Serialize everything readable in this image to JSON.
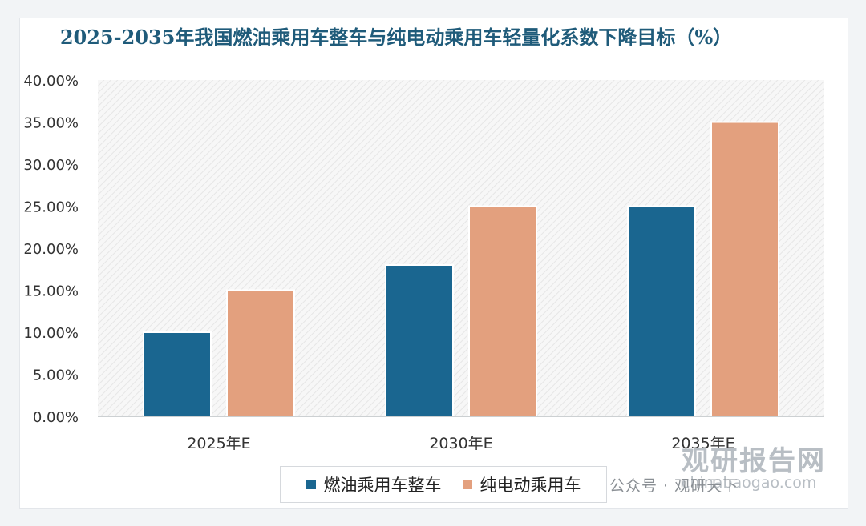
{
  "chart_data": {
    "type": "bar",
    "title": "2025-2035年我国燃油乘用车整车与纯电动乘用车轻量化系数下降目标（%）",
    "categories": [
      "2025年E",
      "2030年E",
      "2035年E"
    ],
    "series": [
      {
        "name": "燃油乘用车整车",
        "values": [
          10,
          18,
          25
        ],
        "color": "#1a6690"
      },
      {
        "name": "纯电动乘用车",
        "values": [
          15,
          25,
          35
        ],
        "color": "#e3a07e"
      }
    ],
    "ylim": [
      0,
      40
    ],
    "yticks": [
      "0.00%",
      "5.00%",
      "10.00%",
      "15.00%",
      "20.00%",
      "25.00%",
      "30.00%",
      "35.00%",
      "40.00%"
    ],
    "xlabel": "",
    "ylabel": "",
    "grid": false,
    "legend_position": "bottom"
  },
  "watermark": {
    "brand": "观研报告网",
    "url": "chinabaogao.com"
  },
  "footer": {
    "account": "公众号 · 观研天下"
  }
}
